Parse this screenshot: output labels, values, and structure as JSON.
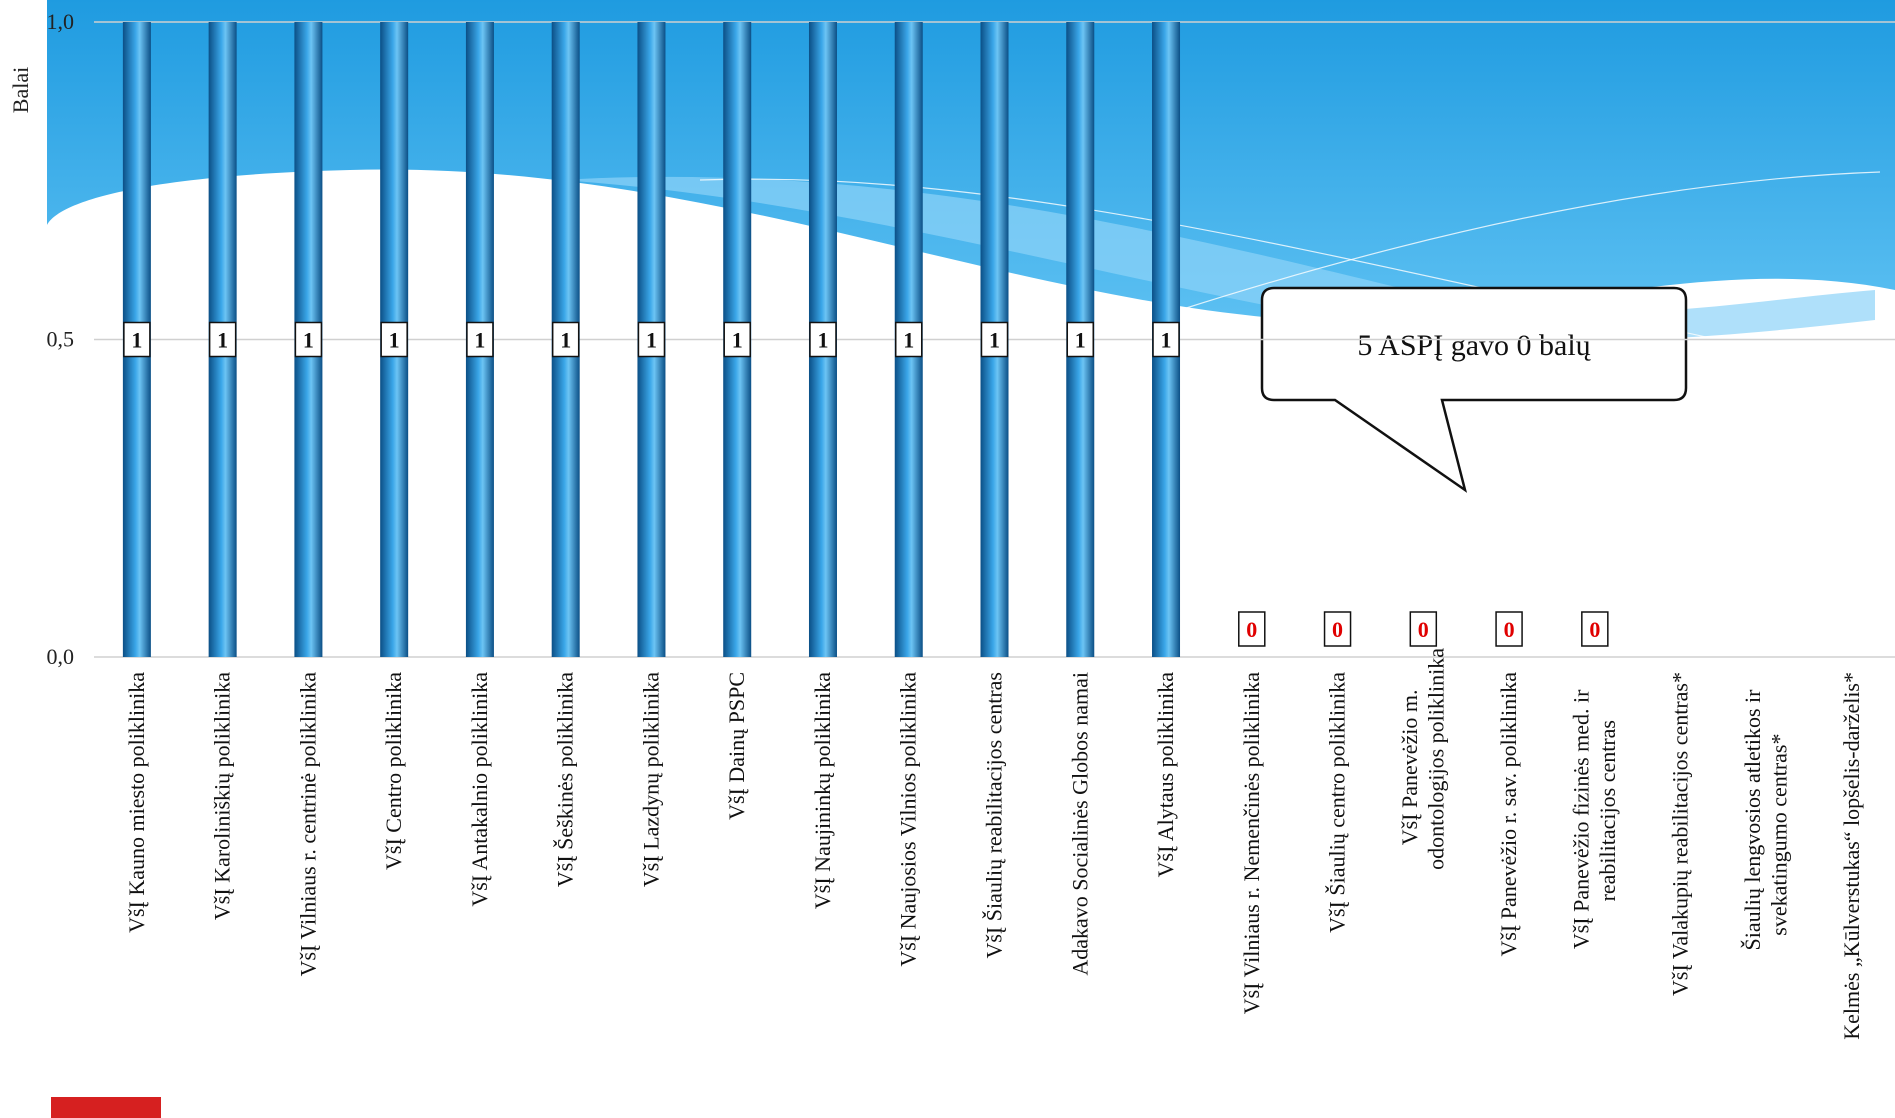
{
  "chart_data": {
    "type": "bar",
    "y_label": "Balai",
    "annotation": "5 ASPĮ gavo 0 balų",
    "categories": [
      "VšĮ Kauno miesto poliklinika",
      "VšĮ Karoliniškių poliklinika",
      "VšĮ Vilniaus r. centrinė poliklinika",
      "VšĮ Centro poliklinika",
      "VšĮ Antakalnio poliklinika",
      "VšĮ Šeškinės poliklinika",
      "VšĮ Lazdynų poliklinika",
      "VšĮ Dainų PSPC",
      "VšĮ Naujininkų poliklinika",
      "VšĮ Naujosios Vilnios poliklinika",
      "VšĮ Šiaulių reabilitacijos centras",
      "Adakavo Socialinės Globos namai",
      "VšĮ Alytaus poliklinika",
      "VšĮ Vilniaus r. Nemenčinės poliklinika",
      "VšĮ Šiaulių centro poliklinika",
      "VšĮ Panevėžio m. odontologijos poliklinika",
      "VšĮ Panevėžio r. sav. poliklinika",
      "VšĮ Panevėžio fizinės med. ir reabilitacijos centras",
      "VšĮ Valakupių reabilitacijos centras*",
      "Šiaulių lengvosios atletikos ir svekatingumo centras*",
      "Kelmės „Kūlverstukas“ lopšelis-darželis*"
    ],
    "values": [
      1,
      1,
      1,
      1,
      1,
      1,
      1,
      1,
      1,
      1,
      1,
      1,
      1,
      0,
      0,
      0,
      0,
      0,
      null,
      null,
      null
    ],
    "color": "#2a8fd4",
    "ylim": [
      0,
      1
    ],
    "yticks": [
      {
        "value": 0,
        "label": "0,0"
      },
      {
        "value": 0.5,
        "label": "0,5"
      },
      {
        "value": 1,
        "label": "1,0"
      }
    ],
    "grid": true
  }
}
